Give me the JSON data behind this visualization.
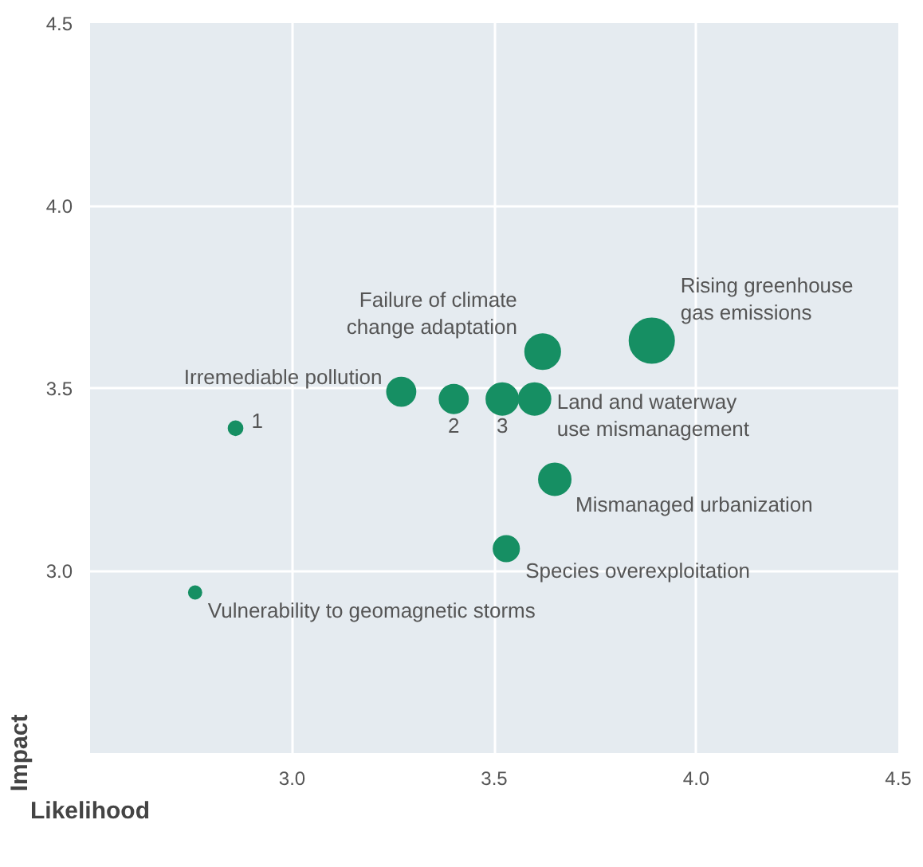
{
  "chart_data": {
    "type": "bubble",
    "xlabel": "Likelihood",
    "ylabel": "Impact",
    "x": [
      2.86,
      2.76,
      3.27,
      3.4,
      3.52,
      3.6,
      3.62,
      3.89,
      3.65,
      3.53
    ],
    "values": [
      3.39,
      2.94,
      3.49,
      3.47,
      3.47,
      3.47,
      3.6,
      3.63,
      3.25,
      3.06
    ],
    "sizes": [
      0.1,
      0.08,
      0.41,
      0.41,
      0.51,
      0.51,
      0.62,
      1,
      0.51,
      0.33
    ],
    "color": "#168f63",
    "annotations": [
      {
        "text": "1",
        "x": 2.86,
        "y": 3.39
      },
      {
        "text": "Vulnerability to geomagnetic storms",
        "x": 2.76,
        "y": 2.94
      },
      {
        "text": "Irremediable pollution",
        "x": 3.27,
        "y": 3.49
      },
      {
        "text": "2",
        "x": 3.4,
        "y": 3.47
      },
      {
        "text": "3",
        "x": 3.52,
        "y": 3.47
      },
      {
        "text": "Land and waterway\nuse mismanagement",
        "x": 3.6,
        "y": 3.47
      },
      {
        "text": "Failure of climate\nchange adaptation",
        "x": 3.62,
        "y": 3.6
      },
      {
        "text": "Rising greenhouse\ngas emissions",
        "x": 3.89,
        "y": 3.63
      },
      {
        "text": "Mismanaged urbanization",
        "x": 3.65,
        "y": 3.25
      },
      {
        "text": "Species overexploitation",
        "x": 3.53,
        "y": 3.06
      }
    ],
    "xlim": [
      2.5,
      4.5
    ],
    "ylim": [
      2.5,
      4.5
    ],
    "xticks": [
      {
        "value": 3,
        "label": "3.0"
      },
      3.5,
      {
        "value": 4,
        "label": "4.0"
      },
      {
        "value": 4.5,
        "label": "4.5"
      }
    ],
    "yticks": [
      {
        "value": 3,
        "label": "3.0"
      },
      3.5,
      {
        "value": 4,
        "label": "4.0"
      },
      {
        "value": 4.5,
        "label": "4.5"
      }
    ],
    "grid": true
  }
}
